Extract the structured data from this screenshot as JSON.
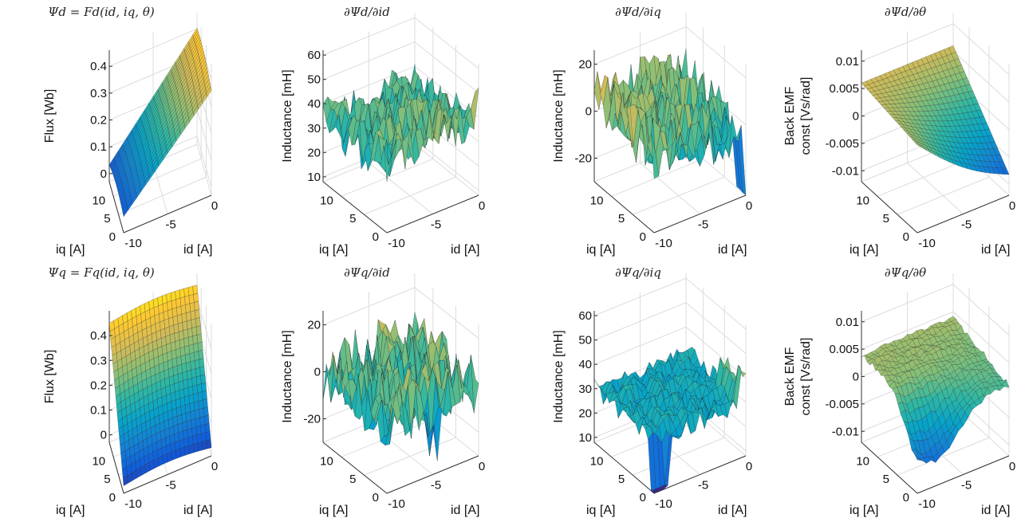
{
  "chart_data": [
    {
      "type": "surface",
      "title": "Ψd = Fd(id,  iq,  θ)",
      "xlabel": "id [A]",
      "ylabel": "iq [A]",
      "zlabel": [
        "Flux [Wb]"
      ],
      "xlim": [
        -10,
        0
      ],
      "ylim": [
        0,
        14
      ],
      "zlim": [
        -0.03,
        0.46
      ],
      "xticks": [
        "-10",
        "-5",
        "0"
      ],
      "yticks": [
        "0",
        "5",
        "10"
      ],
      "zticks": [
        "0",
        "0.1",
        "0.2",
        "0.3",
        "0.4"
      ],
      "colormap": "parula",
      "surface": "flux rising with id from ~0.05 Wb at id=-10 to ~0.4 Wb at id=0"
    },
    {
      "type": "surface",
      "title": "∂Ψd/∂id",
      "xlabel": "id [A]",
      "ylabel": "iq [A]",
      "zlabel": [
        "Inductance [mH]"
      ],
      "xlim": [
        -10,
        0
      ],
      "ylim": [
        0,
        14
      ],
      "zlim": [
        8,
        62
      ],
      "xticks": [
        "-10",
        "-5",
        "0"
      ],
      "yticks": [
        "0",
        "5",
        "10"
      ],
      "zticks": [
        "10",
        "20",
        "30",
        "40",
        "50",
        "60"
      ],
      "colormap": "parula",
      "surface": "noisy around ~35 mH"
    },
    {
      "type": "surface",
      "title": "∂Ψd/∂iq",
      "xlabel": "id [A]",
      "ylabel": "iq [A]",
      "zlabel": [
        "Inductance [mH]"
      ],
      "xlim": [
        -10,
        0
      ],
      "ylim": [
        0,
        14
      ],
      "zlim": [
        -30,
        26
      ],
      "xticks": [
        "-10",
        "-5",
        "0"
      ],
      "yticks": [
        "0",
        "5",
        "10"
      ],
      "zticks": [
        "-20",
        "0",
        "20"
      ],
      "colormap": "parula",
      "surface": "noisy around ~0 mH"
    },
    {
      "type": "surface",
      "title": "∂Ψd/∂θ",
      "xlabel": "id [A]",
      "ylabel": "iq [A]",
      "zlabel": [
        "Back  EMF",
        "const [Vs/rad]"
      ],
      "xlim": [
        -10,
        0
      ],
      "ylim": [
        0,
        14
      ],
      "zlim": [
        -0.012,
        0.012
      ],
      "xticks": [
        "-10",
        "-5",
        "0"
      ],
      "yticks": [
        "0",
        "5",
        "10"
      ],
      "zticks": [
        "-0.01",
        "-0.005",
        "0",
        "0.005",
        "0.01"
      ],
      "colormap": "parula",
      "surface": "tilted, from ~0.004 to ~-0.008"
    },
    {
      "type": "surface",
      "title": "Ψq = Fq(id,  iq,  θ)",
      "xlabel": "id [A]",
      "ylabel": "iq [A]",
      "zlabel": [
        "Flux [Wb]"
      ],
      "xlim": [
        -10,
        0
      ],
      "ylim": [
        0,
        14
      ],
      "zlim": [
        -0.03,
        0.5
      ],
      "xticks": [
        "-10",
        "-5",
        "0"
      ],
      "yticks": [
        "0",
        "5",
        "10"
      ],
      "zticks": [
        "0",
        "0.1",
        "0.2",
        "0.3",
        "0.4"
      ],
      "colormap": "parula",
      "surface": "flux rising with iq from ~0 Wb at iq=0 to ~0.45 Wb at iq=14"
    },
    {
      "type": "surface",
      "title": "∂Ψq/∂id",
      "xlabel": "id [A]",
      "ylabel": "iq [A]",
      "zlabel": [
        "Inductance [mH]"
      ],
      "xlim": [
        -10,
        0
      ],
      "ylim": [
        0,
        14
      ],
      "zlim": [
        -30,
        26
      ],
      "xticks": [
        "-10",
        "-5",
        "0"
      ],
      "yticks": [
        "0",
        "5",
        "10"
      ],
      "zticks": [
        "-20",
        "0",
        "20"
      ],
      "colormap": "parula",
      "surface": "noisy around ~0 mH"
    },
    {
      "type": "surface",
      "title": "∂Ψq/∂iq",
      "xlabel": "id [A]",
      "ylabel": "iq [A]",
      "zlabel": [
        "Inductance [mH]"
      ],
      "xlim": [
        -10,
        0
      ],
      "ylim": [
        0,
        14
      ],
      "zlim": [
        8,
        62
      ],
      "xticks": [
        "-10",
        "-5",
        "0"
      ],
      "yticks": [
        "0",
        "5",
        "10"
      ],
      "zticks": [
        "10",
        "20",
        "30",
        "40",
        "50",
        "60"
      ],
      "colormap": "parula",
      "surface": "around ~30 mH with dip near iq=0"
    },
    {
      "type": "surface",
      "title": "∂Ψq/∂θ",
      "xlabel": "id [A]",
      "ylabel": "iq [A]",
      "zlabel": [
        "Back  EMF",
        "const  [Vs/rad]"
      ],
      "xlim": [
        -10,
        0
      ],
      "ylim": [
        0,
        14
      ],
      "zlim": [
        -0.012,
        0.012
      ],
      "xticks": [
        "-10",
        "-5",
        "0"
      ],
      "yticks": [
        "0",
        "5",
        "10"
      ],
      "zticks": [
        "-0.01",
        "-0.005",
        "0",
        "0.005",
        "0.01"
      ],
      "colormap": "parula",
      "surface": "tilted, from ~0.004 to ~-0.008"
    }
  ]
}
